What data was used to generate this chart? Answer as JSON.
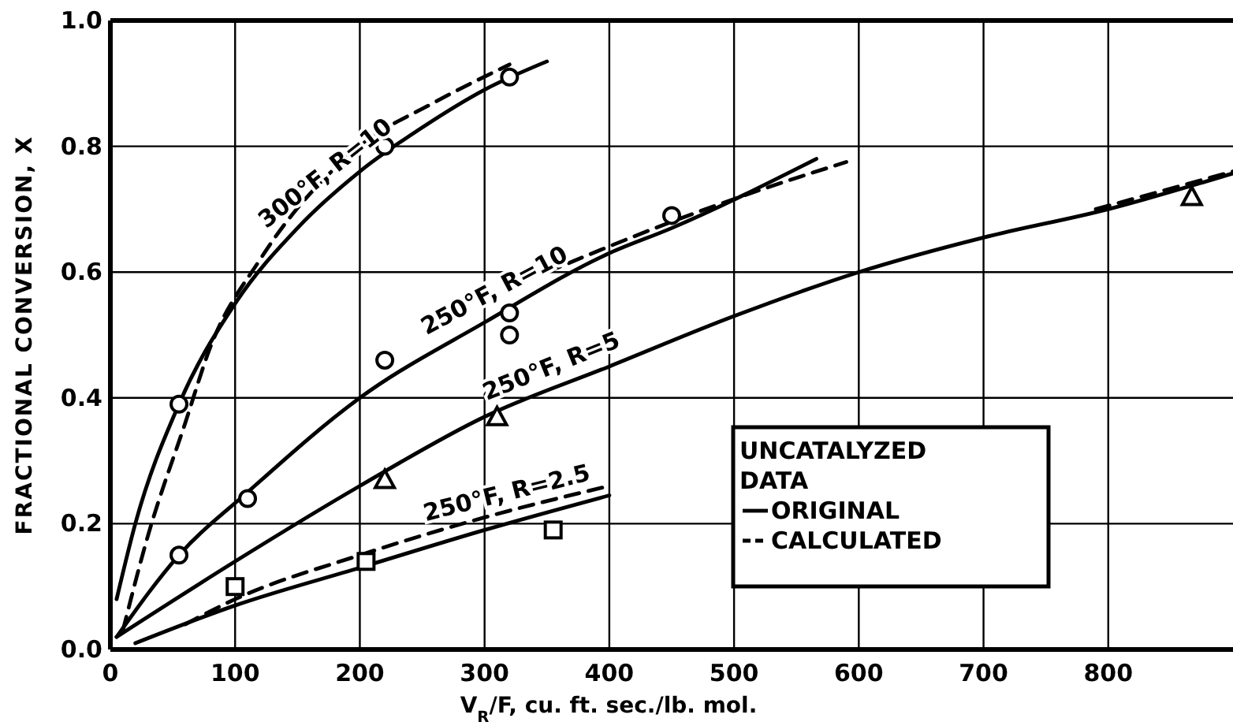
{
  "chart_data": {
    "type": "line",
    "xlabel": "V$_{R}$/F, cu. ft. sec./lb. mol.",
    "ylabel": "FRACTIONAL CONVERSION, X",
    "xlim": [
      0,
      900
    ],
    "ylim": [
      0,
      1
    ],
    "xticks": [
      0,
      100,
      200,
      300,
      400,
      500,
      600,
      700,
      800
    ],
    "yticks": [
      {
        "value": 0,
        "label": "0.0"
      },
      0.2,
      0.4,
      0.6,
      0.8,
      {
        "value": 1,
        "label": "1.0"
      }
    ],
    "grid": true,
    "legend": "bottom right",
    "legend_title": "UNCATALYZED DATA",
    "marker": "none",
    "series": [
      {
        "name": "ORIGINAL",
        "color": "#000000",
        "line_style": "solid",
        "x": [
          5,
          20,
          55,
          100,
          150,
          200,
          250,
          300,
          350
        ],
        "values": [
          0.08,
          0.2,
          0.39,
          0.55,
          0.67,
          0.76,
          0.83,
          0.89,
          0.935
        ]
      },
      {
        "name": "CALCULATED",
        "color": "#000000",
        "line_style": "dashed",
        "x": [
          10,
          30,
          60,
          80,
          120,
          200,
          260,
          320
        ],
        "values": [
          0.03,
          0.18,
          0.36,
          0.48,
          0.62,
          0.8,
          0.87,
          0.93
        ]
      },
      {
        "color": "#000000",
        "line_style": "solid",
        "x": [
          5,
          55,
          110,
          200,
          300,
          400,
          450,
          566
        ],
        "values": [
          0.02,
          0.15,
          0.25,
          0.4,
          0.52,
          0.63,
          0.67,
          0.78
        ]
      },
      {
        "color": "#000000",
        "line_style": "dashed",
        "x": [
          350,
          450,
          520,
          590
        ],
        "values": [
          0.6,
          0.68,
          0.73,
          0.775
        ]
      },
      {
        "color": "#000000",
        "line_style": "solid",
        "x": [
          5,
          100,
          200,
          300,
          400,
          500,
          600,
          700,
          800,
          900
        ],
        "values": [
          0.02,
          0.14,
          0.26,
          0.37,
          0.45,
          0.53,
          0.6,
          0.655,
          0.7,
          0.757
        ]
      },
      {
        "color": "#000000",
        "line_style": "dashed",
        "x": [
          790,
          900
        ],
        "values": [
          0.7,
          0.76
        ]
      },
      {
        "color": "#000000",
        "line_style": "solid",
        "x": [
          20,
          100,
          200,
          300,
          400
        ],
        "values": [
          0.01,
          0.07,
          0.13,
          0.19,
          0.245
        ]
      },
      {
        "color": "#000000",
        "line_style": "dashed",
        "x": [
          60,
          100,
          200,
          300,
          400
        ],
        "values": [
          0.04,
          0.08,
          0.15,
          0.21,
          0.26
        ]
      },
      {
        "type": "scatter",
        "marker": "circle",
        "color": "#000000",
        "x": [
          55,
          220,
          320,
          55,
          110,
          220,
          320,
          320,
          450
        ],
        "values": [
          0.39,
          0.8,
          0.91,
          0.15,
          0.24,
          0.46,
          0.5,
          0.535,
          0.69
        ]
      },
      {
        "type": "scatter",
        "marker": "triangle",
        "color": "#000000",
        "x": [
          220,
          310,
          867
        ],
        "values": [
          0.27,
          0.37,
          0.72
        ]
      },
      {
        "type": "scatter",
        "marker": "square",
        "color": "#000000",
        "x": [
          100,
          205,
          355
        ],
        "values": [
          0.1,
          0.14,
          0.19
        ]
      }
    ],
    "annotations": [
      {
        "text": "300°F, R=10",
        "x": 183,
        "y": 0.73
      },
      {
        "text": "250°F, R=10",
        "x": 316,
        "y": 0.54
      },
      {
        "text": "250°F, R=5",
        "x": 360,
        "y": 0.418
      },
      {
        "text": "250°F, R=2.5",
        "x": 322,
        "y": 0.215
      }
    ]
  }
}
